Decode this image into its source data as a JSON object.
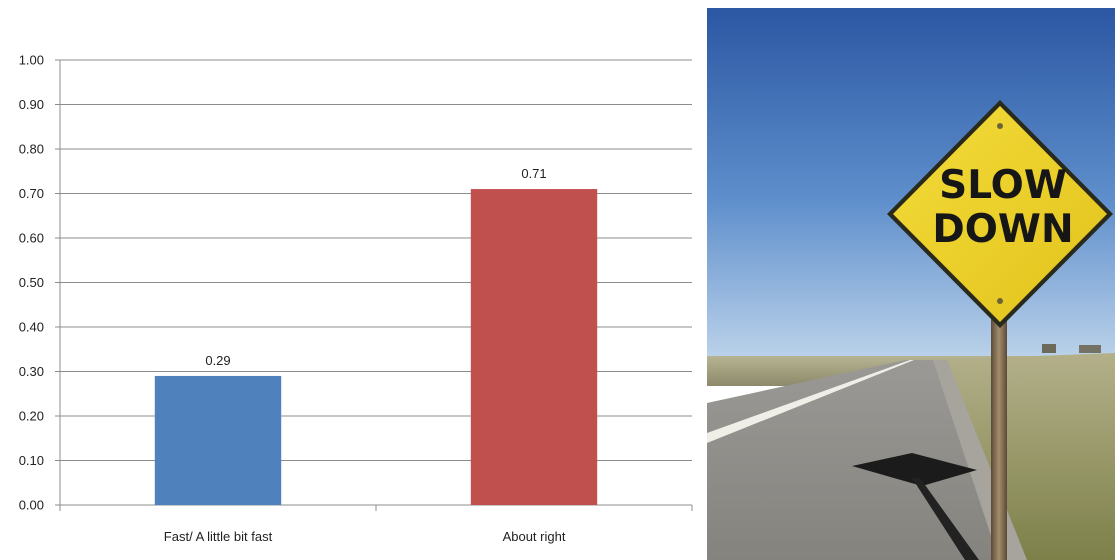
{
  "chart_data": {
    "type": "bar",
    "title": "",
    "xlabel": "",
    "ylabel": "",
    "categories": [
      "Fast/ A little bit fast",
      "About right"
    ],
    "values": [
      0.29,
      0.71
    ],
    "data_labels": [
      "0.29",
      "0.71"
    ],
    "ylim": [
      0,
      1
    ],
    "yticks": [
      "0.00",
      "0.10",
      "0.20",
      "0.30",
      "0.40",
      "0.50",
      "0.60",
      "0.70",
      "0.80",
      "0.90",
      "1.00"
    ],
    "grid": true,
    "legend": "none",
    "colors": [
      "#4f81bd",
      "#c0504d"
    ]
  },
  "photo": {
    "sign_lines": [
      "SLOW",
      "DOWN"
    ],
    "colors": {
      "sky_top": "#2d5aa6",
      "sky_horizon": "#b9d1ea",
      "sign_yellow": "#f0d32a",
      "asphalt": "#8a8884",
      "grass": "#9c9a68"
    }
  }
}
